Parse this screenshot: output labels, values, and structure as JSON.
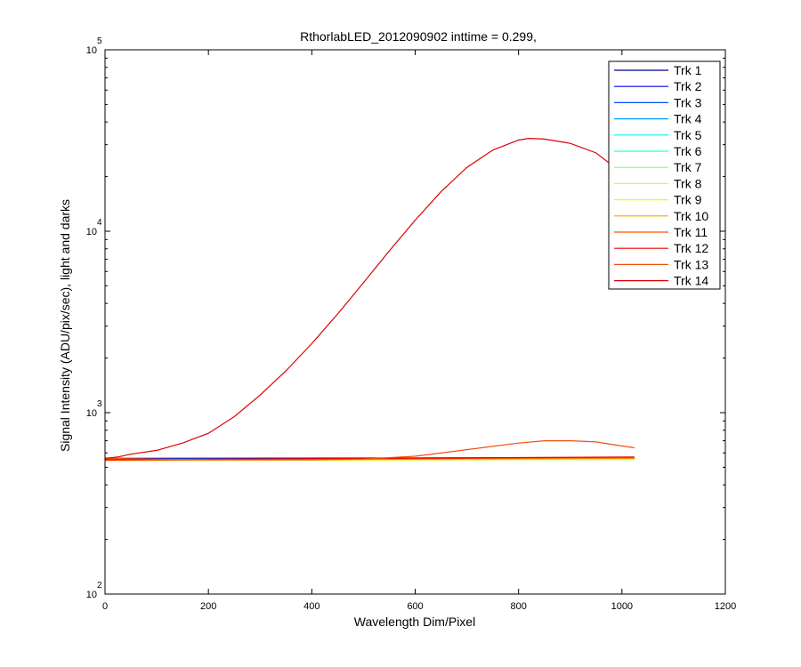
{
  "chart_data": {
    "type": "line",
    "title": "RthorlabLED_2012090902 inttime = 0.299,",
    "xlabel": "Wavelength Dim/Pixel",
    "ylabel": "Signal Intensity (ADU/pix/sec), light and darks",
    "xlim": [
      0,
      1200
    ],
    "ylim": [
      100,
      100000
    ],
    "yscale": "log",
    "grid": false,
    "legend_position": "top-right",
    "x_ticks": [
      {
        "value": 0,
        "label": "0"
      },
      {
        "value": 200,
        "label": "200"
      },
      {
        "value": 400,
        "label": "400"
      },
      {
        "value": 600,
        "label": "600"
      },
      {
        "value": 800,
        "label": "800"
      },
      {
        "value": 1000,
        "label": "1000"
      },
      {
        "value": 1200,
        "label": "1200"
      }
    ],
    "y_ticks": [
      {
        "value": 100,
        "base": "10",
        "exp": "2"
      },
      {
        "value": 1000,
        "base": "10",
        "exp": "3"
      },
      {
        "value": 10000,
        "base": "10",
        "exp": "4"
      },
      {
        "value": 100000,
        "base": "10",
        "exp": "5"
      }
    ],
    "series": [
      {
        "name": "Trk 1",
        "color": "#00008f",
        "x": [
          0,
          1024
        ],
        "y": [
          560,
          565
        ]
      },
      {
        "name": "Trk 2",
        "color": "#0000ef",
        "x": [
          0,
          1024
        ],
        "y": [
          558,
          562
        ]
      },
      {
        "name": "Trk 3",
        "color": "#0050ff",
        "x": [
          0,
          1024
        ],
        "y": [
          555,
          560
        ]
      },
      {
        "name": "Trk 4",
        "color": "#00a0ff",
        "x": [
          0,
          1024
        ],
        "y": [
          552,
          558
        ]
      },
      {
        "name": "Trk 5",
        "color": "#00efff",
        "x": [
          0,
          1024
        ],
        "y": [
          550,
          555
        ]
      },
      {
        "name": "Trk 6",
        "color": "#30ffcf",
        "x": [
          0,
          1024
        ],
        "y": [
          548,
          553
        ]
      },
      {
        "name": "Trk 7",
        "color": "#80ff80",
        "x": [
          0,
          1024
        ],
        "y": [
          546,
          552
        ]
      },
      {
        "name": "Trk 8",
        "color": "#cfff30",
        "x": [
          0,
          1024
        ],
        "y": [
          545,
          552
        ]
      },
      {
        "name": "Trk 9",
        "color": "#ffef00",
        "x": [
          0,
          1024
        ],
        "y": [
          545,
          555
        ]
      },
      {
        "name": "Trk 10",
        "color": "#ffa000",
        "x": [
          0,
          1024
        ],
        "y": [
          546,
          560
        ]
      },
      {
        "name": "Trk 11",
        "color": "#ff5000",
        "x": [
          0,
          1024
        ],
        "y": [
          548,
          565
        ]
      },
      {
        "name": "Trk 12",
        "color": "#ef0000",
        "x": [
          0,
          1024
        ],
        "y": [
          550,
          570
        ]
      },
      {
        "name": "Trk 13",
        "color": "#f05010",
        "x": [
          0,
          100,
          200,
          300,
          400,
          500,
          600,
          700,
          800,
          850,
          900,
          950,
          1000,
          1024
        ],
        "y": [
          560,
          555,
          550,
          550,
          550,
          555,
          575,
          625,
          680,
          700,
          700,
          690,
          655,
          640
        ]
      },
      {
        "name": "Trk 14",
        "color": "#dd0000",
        "x": [
          0,
          25,
          50,
          100,
          150,
          200,
          250,
          300,
          350,
          400,
          450,
          500,
          550,
          600,
          650,
          700,
          750,
          800,
          820,
          850,
          900,
          950,
          1000
        ],
        "y": [
          560,
          570,
          590,
          620,
          680,
          770,
          950,
          1250,
          1700,
          2400,
          3500,
          5200,
          7800,
          11500,
          16500,
          22500,
          28000,
          31800,
          32500,
          32200,
          30500,
          27000,
          21000
        ]
      }
    ]
  }
}
